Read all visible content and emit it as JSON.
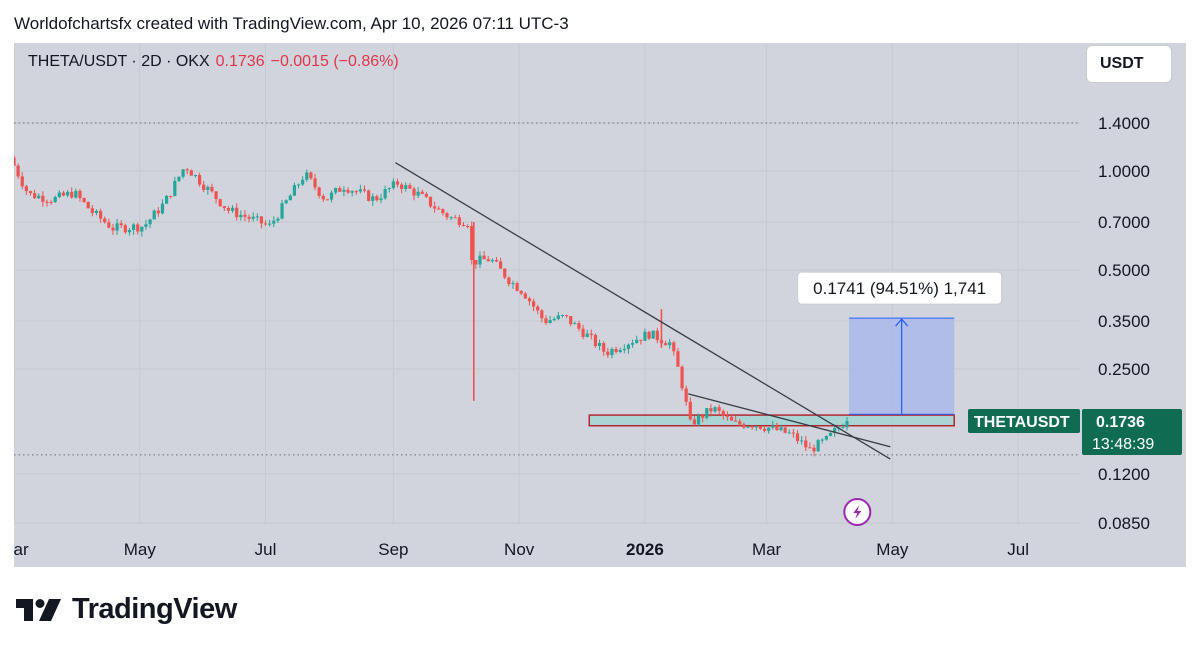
{
  "header": {
    "attribution": "Worldofchartsfx created with TradingView.com, Apr 10, 2026 07:11 UTC-3"
  },
  "legend": {
    "symbol": "THETA/USDT · 2D · OKX",
    "price": "0.1736",
    "change": "−0.0015 (−0.86%)"
  },
  "currency_button": "USDT",
  "footer": {
    "brand": "TradingView"
  },
  "colors": {
    "up": "#26a69a",
    "down": "#ef5350",
    "panel": "#d1d4dc",
    "accent_blue": "#2962ff",
    "badge": "#0f6b52"
  },
  "chart_data": {
    "type": "candlestick",
    "symbol": "THETA/USDT",
    "interval": "2D",
    "exchange": "OKX",
    "y_scale": "log",
    "y_ticks": [
      "1.4000",
      "1.0000",
      "0.7000",
      "0.5000",
      "0.3500",
      "0.2500",
      "0.1200",
      "0.0850"
    ],
    "x_ticks": [
      "Mar",
      "May",
      "Jul",
      "Sep",
      "Nov",
      "2026",
      "Mar",
      "May",
      "Jul"
    ],
    "x_range": [
      "2025-03-01",
      "2026-07-31"
    ],
    "price_path": [
      [
        "2025-03-01",
        1.1
      ],
      [
        "2025-03-10",
        0.85
      ],
      [
        "2025-03-22",
        0.82
      ],
      [
        "2025-04-01",
        0.86
      ],
      [
        "2025-04-10",
        0.75
      ],
      [
        "2025-04-20",
        0.67
      ],
      [
        "2025-05-05",
        0.68
      ],
      [
        "2025-05-15",
        0.8
      ],
      [
        "2025-05-25",
        1.04
      ],
      [
        "2025-06-05",
        0.88
      ],
      [
        "2025-06-15",
        0.76
      ],
      [
        "2025-06-25",
        0.72
      ],
      [
        "2025-07-05",
        0.68
      ],
      [
        "2025-07-15",
        0.84
      ],
      [
        "2025-07-22",
        0.98
      ],
      [
        "2025-08-01",
        0.82
      ],
      [
        "2025-08-10",
        0.9
      ],
      [
        "2025-08-25",
        0.82
      ],
      [
        "2025-09-05",
        0.92
      ],
      [
        "2025-09-15",
        0.85
      ],
      [
        "2025-09-25",
        0.76
      ],
      [
        "2025-10-01",
        0.72
      ],
      [
        "2025-10-09",
        0.7
      ],
      [
        "2025-10-11",
        0.53
      ],
      [
        "2025-10-20",
        0.54
      ],
      [
        "2025-10-30",
        0.46
      ],
      [
        "2025-11-05",
        0.43
      ],
      [
        "2025-11-15",
        0.35
      ],
      [
        "2025-11-25",
        0.36
      ],
      [
        "2025-12-05",
        0.32
      ],
      [
        "2025-12-15",
        0.28
      ],
      [
        "2025-12-25",
        0.3
      ],
      [
        "2026-01-05",
        0.32
      ],
      [
        "2026-01-15",
        0.3
      ],
      [
        "2026-01-20",
        0.24
      ],
      [
        "2026-01-25",
        0.17
      ],
      [
        "2026-02-05",
        0.19
      ],
      [
        "2026-02-15",
        0.17
      ],
      [
        "2026-02-25",
        0.17
      ],
      [
        "2026-03-05",
        0.165
      ],
      [
        "2026-03-15",
        0.158
      ],
      [
        "2026-03-24",
        0.142
      ],
      [
        "2026-04-01",
        0.152
      ],
      [
        "2026-04-10",
        0.1736
      ]
    ],
    "wick_events": [
      {
        "date": "2025-10-10",
        "low": 0.2,
        "high": 0.7
      },
      {
        "date": "2026-01-09",
        "low": 0.29,
        "high": 0.38
      }
    ],
    "current_price": 0.1736,
    "price_badge": {
      "label": "THETAUSDT",
      "price": "0.1736",
      "countdown": "13:48:39"
    },
    "horizontal_lines": [
      1.4,
      0.137
    ],
    "trendlines": [
      {
        "from": [
          "2025-09-02",
          1.06
        ],
        "to": [
          "2026-04-30",
          0.133
        ]
      },
      {
        "from": [
          "2026-01-22",
          0.21
        ],
        "to": [
          "2026-04-30",
          0.145
        ]
      }
    ],
    "zone": {
      "from": "2025-12-05",
      "to": "2026-05-31",
      "low": 0.168,
      "high": 0.181
    },
    "measure": {
      "from": "2026-04-10",
      "to": "2026-05-31",
      "low": 0.182,
      "high": 0.357,
      "label": "0.1741 (94.51%) 1,741"
    }
  }
}
